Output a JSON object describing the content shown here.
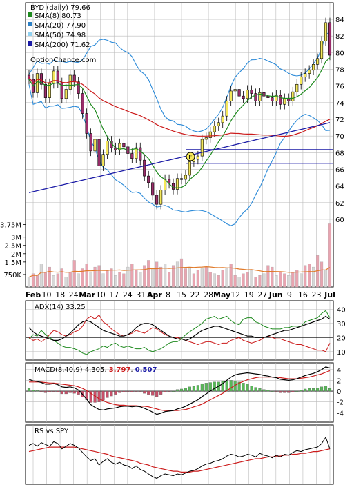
{
  "colors": {
    "bg": "#ffffff",
    "grid": "#bbbbbb",
    "up_candle": "#f5e85a",
    "down_candle": "#9b2d6b",
    "wick": "#000000",
    "sma8": "#1e8a1e",
    "sma20": "#2b7fc5",
    "sma50": "#cc1b1b",
    "sma200": "#1a1aa6",
    "band": "#2b8ad8",
    "band_mid": "#e6e632",
    "volume": "#e8a4b0",
    "volume_ma": "#e07a2a",
    "adx": "#000000",
    "dip": "#1e8a1e",
    "dim": "#cc1b1b",
    "macd": "#000000",
    "signal": "#cc1b1b",
    "hist_pos": "#58b858",
    "hist_neg": "#c8506a",
    "rs": "#000000",
    "rs_ma": "#cc1b1b"
  },
  "chart_data": [
    {
      "type": "line",
      "panel": "price",
      "title": "BYD (daily) 79.66",
      "watermark": "OptionChance.com",
      "y_ticks": [
        "84",
        "82",
        "80",
        "78",
        "76",
        "74",
        "72",
        "70",
        "68",
        "66",
        "64",
        "62",
        "60"
      ],
      "ylim": [
        59,
        85
      ],
      "x_ticks": [
        "Feb",
        "10",
        "18",
        "24",
        "Mar",
        "10",
        "17",
        "24",
        "31",
        "Apr",
        "8",
        "15",
        "22",
        "28",
        "May",
        "12",
        "19",
        "27",
        "Jun",
        "9",
        "16",
        "23",
        "Jul"
      ],
      "legend": [
        {
          "label": "SMA(8) 80.73",
          "color": "#1e8a1e"
        },
        {
          "label": "SMA(20) 77.90",
          "color": "#2b7fc5"
        },
        {
          "label": "SMA(50) 74.98",
          "color": "#8fd0f0"
        },
        {
          "label": "SMA(200) 71.62",
          "color": "#1a1aa6"
        }
      ],
      "horizontal_lines": [
        68.4,
        66.7
      ],
      "marker_label": "E",
      "close": [
        76.8,
        75.2,
        77.5,
        76.2,
        74.6,
        76.3,
        77.8,
        76.4,
        74.5,
        75.6,
        77.3,
        76.5,
        75.1,
        72.7,
        70.3,
        68.2,
        69.6,
        66.4,
        67.8,
        69.4,
        68.6,
        68.3,
        69.1,
        68.7,
        67.9,
        67.3,
        68.6,
        67.1,
        65.2,
        64.4,
        62.9,
        61.8,
        63.5,
        64.8,
        64.3,
        63.6,
        64.9,
        64.8,
        65.3,
        66.9,
        67.2,
        67.6,
        69.6,
        69.8,
        70.5,
        71.2,
        71.6,
        72.4,
        74.2,
        75.4,
        75.6,
        74.8,
        74.5,
        75.5,
        75.1,
        74.2,
        75.2,
        74.8,
        74.6,
        74.2,
        74.9,
        73.8,
        74.5,
        74.2,
        75.3,
        76.2,
        77.1,
        77.5,
        77.9,
        78.6,
        79.3,
        81.4,
        83.6,
        79.7
      ],
      "volume_ticks": [
        "3.75M",
        "3M",
        "2.5M",
        "2M",
        "1.5M",
        "750K"
      ],
      "volume_max": 3.9,
      "volume": [
        0.6,
        0.8,
        0.7,
        1.4,
        0.9,
        1.2,
        0.7,
        0.8,
        1.1,
        0.6,
        0.9,
        1.6,
        0.8,
        1.1,
        1.4,
        0.9,
        1.2,
        1.3,
        0.8,
        1.0,
        1.1,
        0.7,
        0.9,
        0.8,
        1.2,
        1.4,
        1.0,
        0.9,
        1.3,
        1.6,
        1.1,
        1.5,
        1.2,
        1.4,
        0.9,
        1.3,
        1.5,
        1.7,
        1.1,
        1.2,
        0.8,
        1.0,
        1.1,
        1.2,
        0.9,
        0.8,
        0.7,
        1.0,
        1.1,
        1.4,
        0.7,
        0.6,
        0.8,
        0.9,
        1.0,
        0.6,
        0.7,
        0.8,
        1.3,
        1.2,
        0.7,
        0.9,
        0.8,
        0.7,
        0.9,
        1.0,
        0.8,
        1.3,
        1.4,
        1.2,
        1.9,
        1.5,
        1.0,
        3.8
      ]
    },
    {
      "type": "line",
      "panel": "adx",
      "title": "ADX(14) 33.25",
      "y_ticks": [
        "40",
        "30",
        "20",
        "10"
      ],
      "ylim": [
        5,
        45
      ],
      "adx": [
        27,
        24,
        22,
        21,
        20,
        19,
        18,
        18,
        19,
        21,
        23,
        26,
        29,
        31,
        32,
        31,
        29,
        27,
        25,
        24,
        23,
        22,
        21,
        21,
        22,
        24,
        27,
        29,
        30,
        30,
        29,
        27,
        25,
        23,
        21,
        20,
        19,
        19,
        18,
        19,
        21,
        23,
        25,
        26,
        27,
        28,
        28,
        27,
        26,
        25,
        24,
        23,
        22,
        21,
        21,
        20,
        20,
        20,
        21,
        22,
        23,
        24,
        25,
        25,
        26,
        27,
        28,
        29,
        30,
        31,
        32,
        33,
        35,
        33
      ],
      "dip": [
        19,
        22,
        21,
        25,
        22,
        20,
        18,
        16,
        14,
        13,
        13,
        12,
        11,
        9,
        8,
        10,
        11,
        12,
        14,
        13,
        15,
        16,
        14,
        13,
        14,
        13,
        12,
        12,
        13,
        11,
        10,
        11,
        12,
        14,
        16,
        17,
        17,
        19,
        22,
        24,
        26,
        28,
        30,
        33,
        34,
        35,
        33,
        34,
        35,
        32,
        30,
        29,
        33,
        34,
        34,
        31,
        30,
        28,
        27,
        26,
        26,
        26,
        27,
        27,
        28,
        28,
        28,
        31,
        32,
        33,
        34,
        37,
        39,
        34
      ],
      "dim": [
        20,
        18,
        19,
        17,
        19,
        22,
        25,
        24,
        22,
        21,
        22,
        24,
        25,
        28,
        33,
        35,
        33,
        36,
        31,
        29,
        26,
        24,
        22,
        21,
        22,
        23,
        25,
        24,
        23,
        25,
        27,
        26,
        24,
        22,
        21,
        20,
        20,
        19,
        18,
        17,
        16,
        15,
        16,
        17,
        17,
        16,
        15,
        16,
        16,
        18,
        19,
        20,
        18,
        17,
        16,
        17,
        18,
        20,
        21,
        20,
        19,
        19,
        18,
        17,
        16,
        15,
        15,
        14,
        13,
        12,
        11,
        11,
        10,
        16
      ]
    },
    {
      "type": "line",
      "panel": "macd",
      "title": "MACD(8,40,9) 4.305,",
      "values_printed": [
        "3.797",
        "0.507"
      ],
      "y_ticks": [
        "4",
        "2",
        "0",
        "-2",
        "-4"
      ],
      "ylim": [
        -5.5,
        5
      ],
      "macd": [
        2.2,
        1.9,
        1.8,
        1.6,
        1.3,
        1.3,
        1.4,
        1.2,
        0.8,
        0.7,
        0.8,
        0.6,
        0.2,
        -0.6,
        -1.5,
        -2.5,
        -3.0,
        -3.4,
        -3.5,
        -3.3,
        -3.2,
        -3.1,
        -2.9,
        -2.8,
        -2.8,
        -2.9,
        -2.8,
        -2.9,
        -3.2,
        -3.5,
        -3.9,
        -4.3,
        -4.1,
        -3.8,
        -3.7,
        -3.6,
        -3.3,
        -3.1,
        -2.8,
        -2.4,
        -2.0,
        -1.6,
        -1.0,
        -0.5,
        0.0,
        0.5,
        0.9,
        1.4,
        2.0,
        2.6,
        3.0,
        3.2,
        3.3,
        3.4,
        3.3,
        3.2,
        3.1,
        2.9,
        2.8,
        2.6,
        2.5,
        2.2,
        2.1,
        2.0,
        2.1,
        2.3,
        2.6,
        2.9,
        3.1,
        3.3,
        3.6,
        4.0,
        4.5,
        4.3
      ],
      "signal": [
        1.7,
        1.7,
        1.7,
        1.7,
        1.6,
        1.5,
        1.5,
        1.4,
        1.3,
        1.2,
        1.1,
        1.0,
        0.8,
        0.5,
        0.1,
        -0.4,
        -0.9,
        -1.4,
        -1.8,
        -2.1,
        -2.3,
        -2.5,
        -2.6,
        -2.6,
        -2.7,
        -2.7,
        -2.7,
        -2.8,
        -2.8,
        -2.9,
        -3.1,
        -3.3,
        -3.5,
        -3.6,
        -3.6,
        -3.6,
        -3.6,
        -3.5,
        -3.4,
        -3.2,
        -2.9,
        -2.7,
        -2.4,
        -2.0,
        -1.6,
        -1.2,
        -0.8,
        -0.4,
        0.1,
        0.6,
        1.1,
        1.5,
        1.8,
        2.1,
        2.3,
        2.5,
        2.6,
        2.6,
        2.6,
        2.6,
        2.6,
        2.5,
        2.4,
        2.3,
        2.3,
        2.3,
        2.4,
        2.5,
        2.6,
        2.8,
        3.0,
        3.2,
        3.5,
        3.8
      ]
    },
    {
      "type": "line",
      "panel": "rs",
      "title": "RS vs SPY",
      "rs": [
        70,
        72,
        69,
        73,
        71,
        69,
        74,
        72,
        66,
        69,
        72,
        70,
        67,
        62,
        57,
        53,
        55,
        48,
        52,
        55,
        51,
        49,
        51,
        48,
        47,
        44,
        47,
        43,
        41,
        38,
        35,
        33,
        36,
        38,
        37,
        36,
        38,
        37,
        39,
        41,
        42,
        44,
        47,
        49,
        50,
        52,
        53,
        55,
        58,
        60,
        59,
        57,
        58,
        60,
        59,
        57,
        61,
        59,
        58,
        56,
        59,
        57,
        60,
        59,
        62,
        64,
        63,
        65,
        66,
        67,
        68,
        72,
        79,
        66
      ],
      "rs_ma": [
        63,
        64,
        65,
        66,
        67,
        68,
        68,
        68,
        68,
        68,
        68,
        68,
        67,
        66,
        65,
        64,
        63,
        62,
        61,
        60,
        58,
        57,
        56,
        55,
        54,
        53,
        52,
        50,
        49,
        48,
        46,
        45,
        44,
        43,
        42,
        41,
        41,
        40,
        40,
        40,
        41,
        41,
        42,
        43,
        44,
        45,
        46,
        47,
        48,
        49,
        50,
        51,
        52,
        53,
        54,
        55,
        55,
        56,
        57,
        57,
        58,
        58,
        59,
        59,
        60,
        60,
        61,
        61,
        62,
        63,
        63,
        64,
        65,
        66
      ]
    }
  ]
}
